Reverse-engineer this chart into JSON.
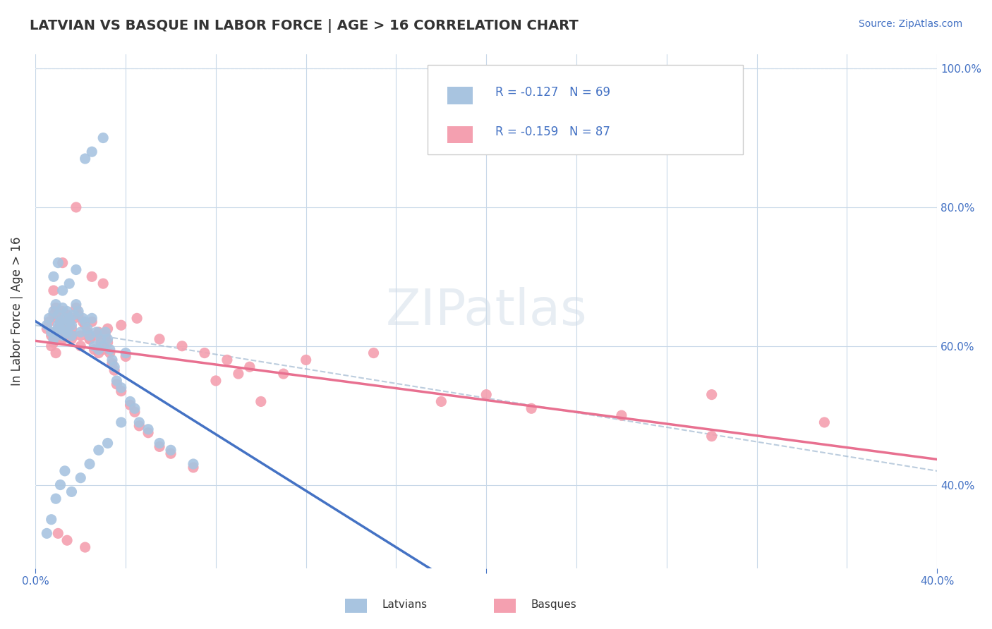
{
  "title": "LATVIAN VS BASQUE IN LABOR FORCE | AGE > 16 CORRELATION CHART",
  "source_text": "Source: ZipAtlas.com",
  "ylabel": "In Labor Force | Age > 16",
  "xlim": [
    0.0,
    0.4
  ],
  "ylim": [
    0.28,
    1.02
  ],
  "latvian_color": "#a8c4e0",
  "basque_color": "#f4a0b0",
  "latvian_line_color": "#4472c4",
  "basque_line_color": "#e87090",
  "R_latvian": -0.127,
  "N_latvian": 69,
  "R_basque": -0.159,
  "N_basque": 87,
  "background_color": "#ffffff",
  "grid_color": "#c8d8e8",
  "watermark": "ZIPatlas",
  "latvians_x": [
    0.005,
    0.006,
    0.007,
    0.008,
    0.008,
    0.009,
    0.009,
    0.01,
    0.01,
    0.011,
    0.011,
    0.012,
    0.012,
    0.013,
    0.013,
    0.014,
    0.014,
    0.015,
    0.015,
    0.016,
    0.016,
    0.017,
    0.018,
    0.019,
    0.02,
    0.021,
    0.022,
    0.023,
    0.024,
    0.025,
    0.026,
    0.027,
    0.028,
    0.029,
    0.03,
    0.031,
    0.032,
    0.033,
    0.034,
    0.035,
    0.036,
    0.038,
    0.04,
    0.042,
    0.044,
    0.046,
    0.05,
    0.055,
    0.06,
    0.07,
    0.008,
    0.01,
    0.012,
    0.015,
    0.018,
    0.022,
    0.025,
    0.03,
    0.005,
    0.007,
    0.009,
    0.011,
    0.013,
    0.016,
    0.02,
    0.024,
    0.028,
    0.032,
    0.038
  ],
  "latvians_y": [
    0.63,
    0.64,
    0.62,
    0.65,
    0.61,
    0.66,
    0.62,
    0.63,
    0.645,
    0.635,
    0.625,
    0.655,
    0.615,
    0.64,
    0.625,
    0.65,
    0.62,
    0.635,
    0.64,
    0.63,
    0.615,
    0.645,
    0.66,
    0.65,
    0.62,
    0.64,
    0.635,
    0.625,
    0.615,
    0.64,
    0.6,
    0.62,
    0.595,
    0.61,
    0.6,
    0.62,
    0.61,
    0.595,
    0.58,
    0.57,
    0.55,
    0.54,
    0.59,
    0.52,
    0.51,
    0.49,
    0.48,
    0.46,
    0.45,
    0.43,
    0.7,
    0.72,
    0.68,
    0.69,
    0.71,
    0.87,
    0.88,
    0.9,
    0.33,
    0.35,
    0.38,
    0.4,
    0.42,
    0.39,
    0.41,
    0.43,
    0.45,
    0.46,
    0.49
  ],
  "basques_x": [
    0.005,
    0.006,
    0.007,
    0.008,
    0.008,
    0.009,
    0.009,
    0.01,
    0.01,
    0.011,
    0.011,
    0.012,
    0.012,
    0.013,
    0.013,
    0.014,
    0.014,
    0.015,
    0.015,
    0.016,
    0.016,
    0.017,
    0.018,
    0.019,
    0.02,
    0.021,
    0.022,
    0.023,
    0.024,
    0.025,
    0.026,
    0.027,
    0.028,
    0.029,
    0.03,
    0.031,
    0.032,
    0.033,
    0.034,
    0.035,
    0.036,
    0.038,
    0.04,
    0.042,
    0.044,
    0.046,
    0.05,
    0.055,
    0.06,
    0.07,
    0.08,
    0.09,
    0.1,
    0.12,
    0.15,
    0.18,
    0.22,
    0.26,
    0.3,
    0.35,
    0.007,
    0.009,
    0.011,
    0.013,
    0.016,
    0.02,
    0.024,
    0.028,
    0.032,
    0.038,
    0.045,
    0.055,
    0.065,
    0.075,
    0.085,
    0.095,
    0.11,
    0.008,
    0.012,
    0.018,
    0.025,
    0.03,
    0.2,
    0.3,
    0.01,
    0.014,
    0.022
  ],
  "basques_y": [
    0.625,
    0.635,
    0.615,
    0.645,
    0.605,
    0.655,
    0.615,
    0.625,
    0.64,
    0.63,
    0.62,
    0.65,
    0.61,
    0.635,
    0.62,
    0.645,
    0.615,
    0.63,
    0.635,
    0.625,
    0.61,
    0.64,
    0.655,
    0.645,
    0.615,
    0.635,
    0.63,
    0.62,
    0.61,
    0.635,
    0.595,
    0.615,
    0.59,
    0.605,
    0.595,
    0.615,
    0.605,
    0.59,
    0.575,
    0.565,
    0.545,
    0.535,
    0.585,
    0.515,
    0.505,
    0.485,
    0.475,
    0.455,
    0.445,
    0.425,
    0.55,
    0.56,
    0.52,
    0.58,
    0.59,
    0.52,
    0.51,
    0.5,
    0.53,
    0.49,
    0.6,
    0.59,
    0.61,
    0.62,
    0.615,
    0.6,
    0.61,
    0.62,
    0.625,
    0.63,
    0.64,
    0.61,
    0.6,
    0.59,
    0.58,
    0.57,
    0.56,
    0.68,
    0.72,
    0.8,
    0.7,
    0.69,
    0.53,
    0.47,
    0.33,
    0.32,
    0.31
  ]
}
